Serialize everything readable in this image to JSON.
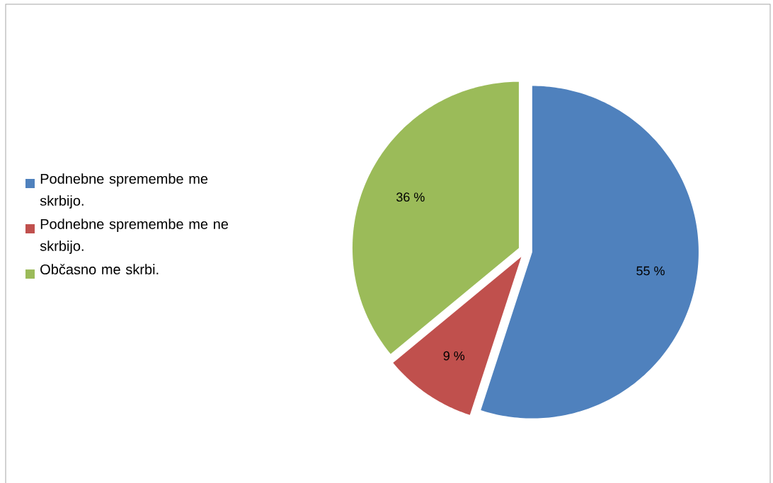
{
  "chart_data": {
    "type": "pie",
    "categories": [
      "Podnebne spremembe me skrbijo.",
      "Podnebne spremembe me ne skrbijo.",
      "Občasno me skrbi."
    ],
    "values": [
      55,
      9,
      36
    ],
    "colors": [
      "#4f81bd",
      "#c0504d",
      "#9bbb59"
    ],
    "value_labels": [
      "55 %",
      "9 %",
      "36 %"
    ],
    "legend": "left"
  }
}
